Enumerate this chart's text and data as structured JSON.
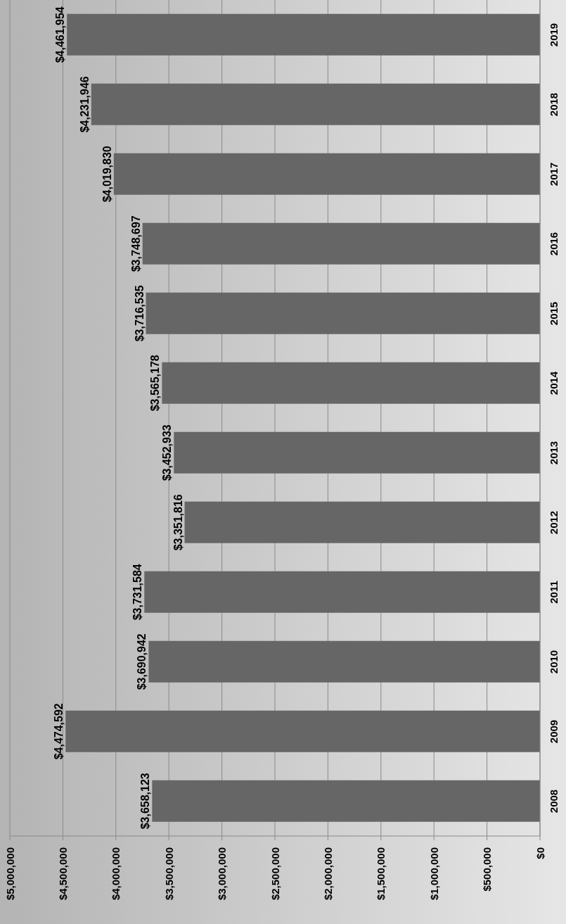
{
  "chart_data": {
    "type": "bar",
    "orientation": "horizontal",
    "categories": [
      "2019",
      "2018",
      "2017",
      "2016",
      "2015",
      "2014",
      "2013",
      "2012",
      "2011",
      "2010",
      "2009",
      "2008"
    ],
    "values": [
      4461954,
      4231946,
      4019830,
      3748697,
      3716535,
      3565178,
      3452933,
      3351816,
      3731584,
      3690942,
      4474592,
      3658123
    ],
    "value_labels": [
      "$4,461,954",
      "$4,231,946",
      "$4,019,830",
      "$3,748,697",
      "$3,716,535",
      "$3,565,178",
      "$3,452,933",
      "$3,351,816",
      "$3,731,584",
      "$3,690,942",
      "$4,474,592",
      "$3,658,123"
    ],
    "color": "#666666",
    "xlim": [
      5000000,
      0
    ],
    "xticks": [
      {
        "value": 0,
        "label": "$0"
      },
      {
        "value": 500000,
        "label": "$500,000"
      },
      {
        "value": 1000000,
        "label": "$1,000,000"
      },
      {
        "value": 1500000,
        "label": "$1,500,000"
      },
      {
        "value": 2000000,
        "label": "$2,000,000"
      },
      {
        "value": 2500000,
        "label": "$2,500,000"
      },
      {
        "value": 3000000,
        "label": "$3,000,000"
      },
      {
        "value": 3500000,
        "label": "$3,500,000"
      },
      {
        "value": 4000000,
        "label": "$4,000,000"
      },
      {
        "value": 4500000,
        "label": "$4,500,000"
      },
      {
        "value": 5000000,
        "label": "$5,000,000"
      }
    ],
    "grid": "x"
  }
}
